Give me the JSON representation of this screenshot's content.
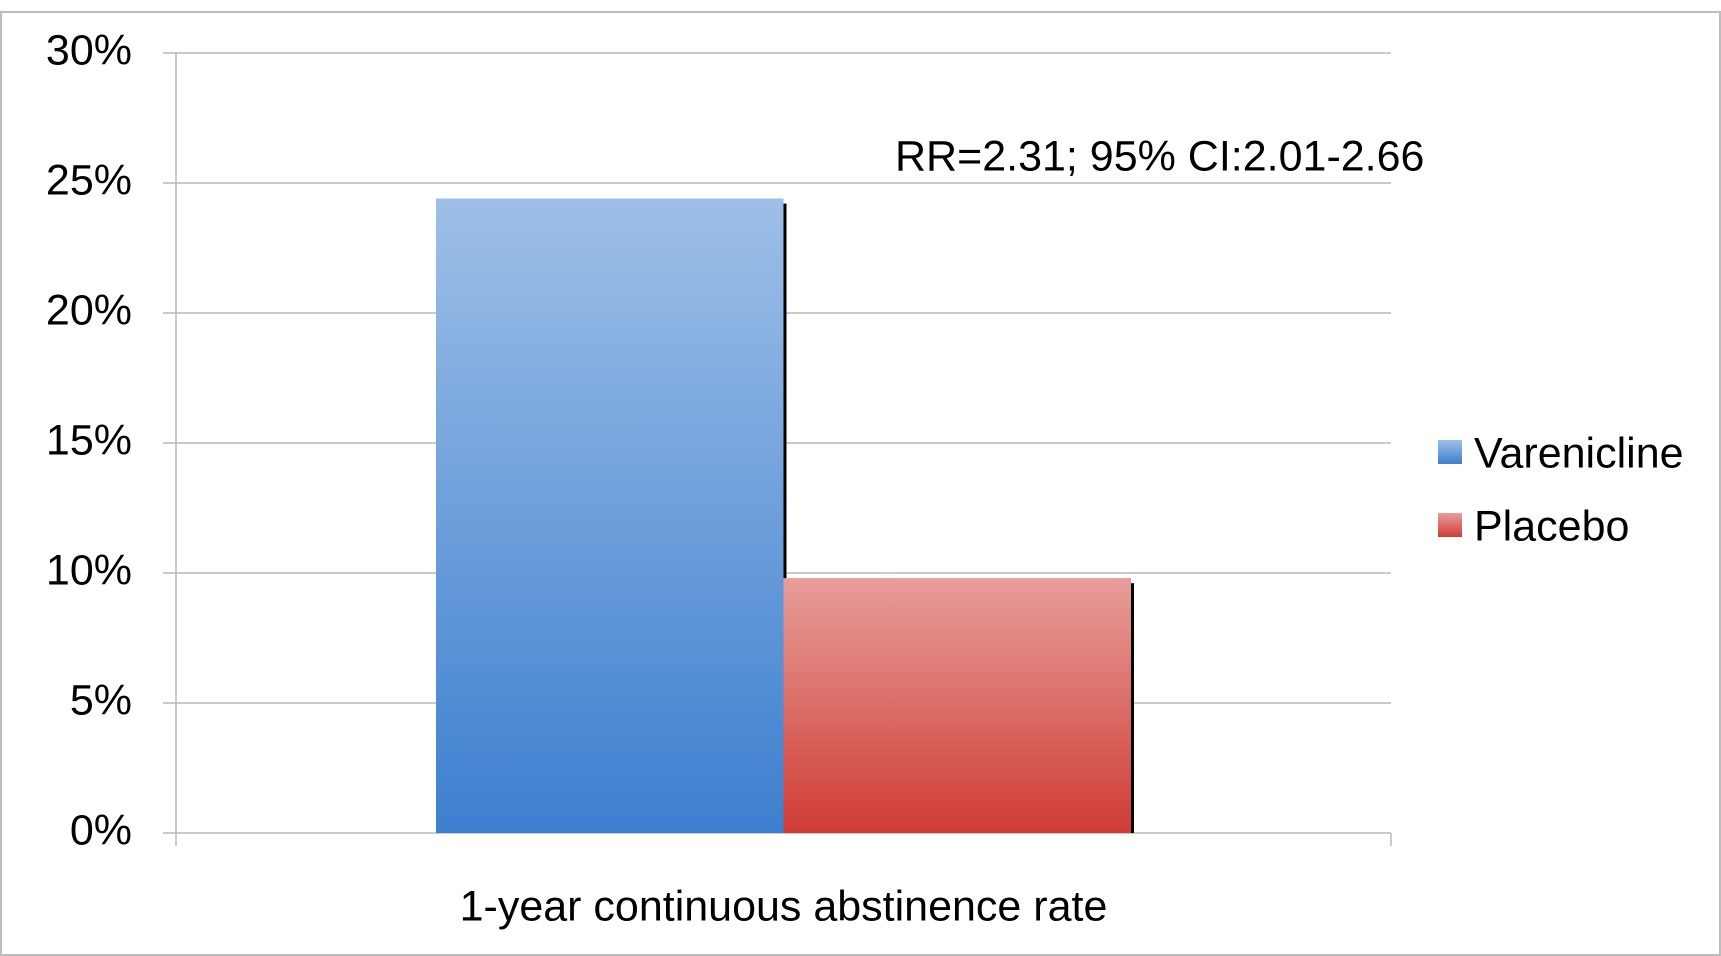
{
  "chart_data": {
    "type": "bar",
    "categories": [
      "1-year continuous abstinence rate"
    ],
    "series": [
      {
        "name": "Varenicline",
        "color": "#3d7fcf",
        "values": [
          24.4
        ]
      },
      {
        "name": "Placebo",
        "color": "#d03c35",
        "values": [
          9.8
        ]
      }
    ],
    "annotations": [
      "RR=2.31; 95% CI:2.01-2.66"
    ],
    "ylim": [
      0,
      30
    ],
    "yticks": [
      {
        "value": 0,
        "label": "0%"
      },
      {
        "value": 5,
        "label": "5%"
      },
      {
        "value": 10,
        "label": "10%"
      },
      {
        "value": 15,
        "label": "15%"
      },
      {
        "value": 20,
        "label": "20%"
      },
      {
        "value": 25,
        "label": "25%"
      },
      {
        "value": 30,
        "label": "30%"
      }
    ],
    "grid": true,
    "legend": "right"
  }
}
